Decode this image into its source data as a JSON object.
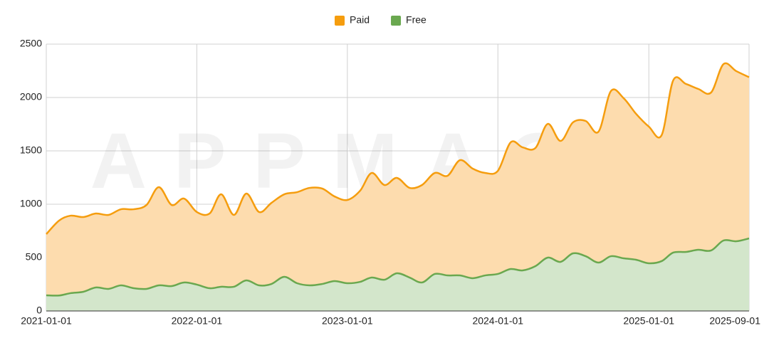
{
  "chart_data": {
    "type": "area",
    "watermark": "APPMAGIC",
    "x": [
      "2021-01-01",
      "2021-02-01",
      "2021-03-01",
      "2021-04-01",
      "2021-05-01",
      "2021-06-01",
      "2021-07-01",
      "2021-08-01",
      "2021-09-01",
      "2021-10-01",
      "2021-11-01",
      "2021-12-01",
      "2022-01-01",
      "2022-02-01",
      "2022-03-01",
      "2022-04-01",
      "2022-05-01",
      "2022-06-01",
      "2022-07-01",
      "2022-08-01",
      "2022-09-01",
      "2022-10-01",
      "2022-11-01",
      "2022-12-01",
      "2023-01-01",
      "2023-02-01",
      "2023-03-01",
      "2023-04-01",
      "2023-05-01",
      "2023-06-01",
      "2023-07-01",
      "2023-08-01",
      "2023-09-01",
      "2023-10-01",
      "2023-11-01",
      "2023-12-01",
      "2024-01-01",
      "2024-02-01",
      "2024-03-01",
      "2024-04-01",
      "2024-05-01",
      "2024-06-01",
      "2024-07-01",
      "2024-08-01",
      "2024-09-01",
      "2024-10-01",
      "2024-11-01",
      "2024-12-01",
      "2025-01-01",
      "2025-02-01",
      "2025-03-01",
      "2025-04-01",
      "2025-05-01",
      "2025-06-01",
      "2025-07-01",
      "2025-08-01",
      "2025-09-01"
    ],
    "series": [
      {
        "name": "Paid",
        "color": "#f59d0e",
        "fill": "#fddcae",
        "values": [
          720,
          847,
          893,
          880,
          913,
          900,
          953,
          953,
          993,
          1160,
          993,
          1053,
          927,
          913,
          1093,
          900,
          1100,
          927,
          1013,
          1093,
          1113,
          1153,
          1147,
          1073,
          1040,
          1127,
          1293,
          1180,
          1247,
          1153,
          1180,
          1293,
          1267,
          1413,
          1333,
          1293,
          1313,
          1580,
          1533,
          1527,
          1753,
          1593,
          1767,
          1780,
          1680,
          2060,
          1993,
          1847,
          1727,
          1647,
          2160,
          2127,
          2080,
          2047,
          2313,
          2247,
          2190
        ]
      },
      {
        "name": "Free",
        "color": "#6aa84f",
        "fill": "#d3e6cb",
        "values": [
          147,
          145,
          167,
          180,
          220,
          207,
          240,
          213,
          207,
          240,
          233,
          267,
          247,
          213,
          227,
          227,
          287,
          240,
          253,
          320,
          260,
          240,
          253,
          280,
          260,
          273,
          313,
          293,
          353,
          313,
          267,
          347,
          333,
          333,
          307,
          333,
          347,
          393,
          380,
          420,
          500,
          460,
          540,
          513,
          453,
          513,
          493,
          480,
          447,
          467,
          547,
          553,
          573,
          567,
          660,
          653,
          680
        ]
      }
    ],
    "xlim": [
      "2021-01-01",
      "2025-09-01"
    ],
    "xticks": [
      "2021-01-01",
      "2022-01-01",
      "2023-01-01",
      "2024-01-01",
      "2025-01-01",
      "2025-09-01"
    ],
    "ylim": [
      0,
      2500
    ],
    "yticks": [
      0,
      500,
      1000,
      1500,
      2000,
      2500
    ],
    "grid": true,
    "legend": "top"
  }
}
